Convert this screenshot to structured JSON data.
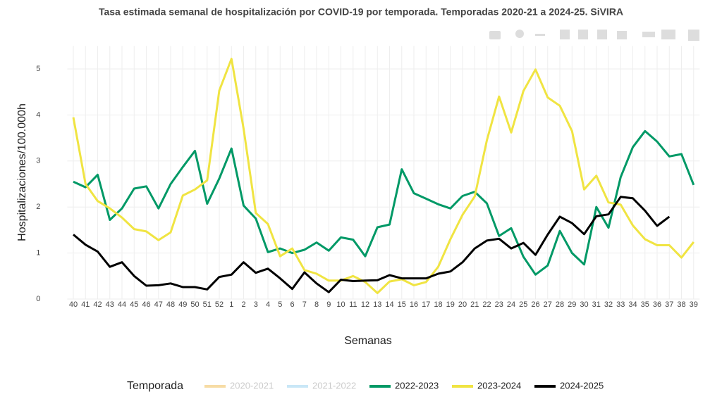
{
  "chart_data": {
    "type": "line",
    "title": "Tasa estimada semanal de hospitalización por COVID-19 por temporada. Temporadas 2020-21 a 2024-25. SiVIRA",
    "x_label": "Semanas",
    "y_label": "Hospitalizaciones/100.000h",
    "legend_title": "Temporada",
    "legend": "bottom",
    "grid": true,
    "categories": [
      "40",
      "41",
      "42",
      "43",
      "44",
      "45",
      "46",
      "47",
      "48",
      "49",
      "50",
      "51",
      "52",
      "1",
      "2",
      "3",
      "4",
      "5",
      "6",
      "7",
      "8",
      "9",
      "10",
      "11",
      "12",
      "13",
      "14",
      "15",
      "16",
      "17",
      "18",
      "19",
      "20",
      "21",
      "22",
      "23",
      "24",
      "25",
      "26",
      "27",
      "28",
      "29",
      "30",
      "31",
      "32",
      "33",
      "34",
      "35",
      "36",
      "37",
      "38",
      "39"
    ],
    "ylim": [
      0,
      5.5
    ],
    "yticks": [
      0,
      1,
      2,
      3,
      4,
      5
    ],
    "series": [
      {
        "name": "2020-2021",
        "color": "#f2c56b",
        "visible": "legendonly"
      },
      {
        "name": "2021-2022",
        "color": "#a6d8f2",
        "visible": "legendonly"
      },
      {
        "name": "2022-2023",
        "color": "#009966",
        "values": [
          2.55,
          2.43,
          2.7,
          1.72,
          1.97,
          2.4,
          2.45,
          1.97,
          2.5,
          2.87,
          3.22,
          2.07,
          2.62,
          3.27,
          2.03,
          1.75,
          1.02,
          1.1,
          1.0,
          1.07,
          1.23,
          1.05,
          1.34,
          1.29,
          0.93,
          1.56,
          1.62,
          2.82,
          2.3,
          2.18,
          2.06,
          1.97,
          2.24,
          2.33,
          2.08,
          1.37,
          1.54,
          0.92,
          0.53,
          0.73,
          1.48,
          1.0,
          0.75,
          2.0,
          1.55,
          2.65,
          3.3,
          3.65,
          3.42,
          3.1,
          3.15,
          2.48
        ]
      },
      {
        "name": "2023-2024",
        "color": "#f0e442",
        "values": [
          3.95,
          2.5,
          2.13,
          1.97,
          1.77,
          1.52,
          1.47,
          1.28,
          1.45,
          2.25,
          2.38,
          2.58,
          4.53,
          5.22,
          3.7,
          1.87,
          1.63,
          0.93,
          1.1,
          0.63,
          0.55,
          0.4,
          0.4,
          0.5,
          0.37,
          0.13,
          0.38,
          0.43,
          0.3,
          0.37,
          0.7,
          1.3,
          1.83,
          2.23,
          3.45,
          4.4,
          3.62,
          4.52,
          4.99,
          4.38,
          4.2,
          3.65,
          2.38,
          2.68,
          2.1,
          2.05,
          1.6,
          1.3,
          1.17,
          1.17,
          0.9,
          1.24
        ]
      },
      {
        "name": "2024-2025",
        "color": "#000000",
        "values": [
          1.4,
          1.18,
          1.03,
          0.7,
          0.8,
          0.5,
          0.29,
          0.3,
          0.34,
          0.26,
          0.26,
          0.21,
          0.48,
          0.53,
          0.8,
          0.57,
          0.66,
          0.45,
          0.22,
          0.58,
          0.34,
          0.15,
          0.42,
          0.39,
          0.4,
          0.41,
          0.52,
          0.45,
          0.45,
          0.45,
          0.55,
          0.6,
          0.8,
          1.1,
          1.27,
          1.31,
          1.1,
          1.22,
          0.96,
          1.4,
          1.79,
          1.65,
          1.41,
          1.8,
          1.84,
          2.22,
          2.19,
          1.92,
          1.59,
          1.79,
          null,
          null
        ]
      }
    ]
  }
}
